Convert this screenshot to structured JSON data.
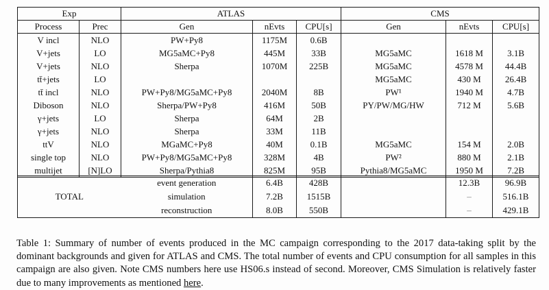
{
  "table": {
    "header_groups": [
      {
        "label": "Exp"
      },
      {
        "label": "ATLAS"
      },
      {
        "label": "CMS"
      }
    ],
    "columns": [
      "Process",
      "Prec",
      "Gen",
      "nEvts",
      "CPU[s]",
      "Gen",
      "nEvts",
      "CPU[s]"
    ],
    "rows": [
      [
        "V incl",
        "NLO",
        "PW+Py8",
        "1175M",
        "0.6B",
        "",
        "",
        ""
      ],
      [
        "V+jets",
        "LO",
        "MG5aMC+Py8",
        "445M",
        "33B",
        "MG5aMC",
        "1618 M",
        "3.1B"
      ],
      [
        "V+jets",
        "NLO",
        "Sherpa",
        "1070M",
        "225B",
        "MG5aMC",
        "4578 M",
        "44.4B"
      ],
      [
        "tt̄+jets",
        "LO",
        "",
        "",
        "",
        "MG5aMC",
        "430 M",
        "26.4B"
      ],
      [
        "tt̄ incl",
        "NLO",
        "PW+Py8/MG5aMC+Py8",
        "2040M",
        "8B",
        "PW¹",
        "1940 M",
        "4.7B"
      ],
      [
        "Diboson",
        "NLO",
        "Sherpa/PW+Py8",
        "416M",
        "50B",
        "PY/PW/MG/HW",
        "712 M",
        "5.6B"
      ],
      [
        "γ+jets",
        "LO",
        "Sherpa",
        "64M",
        "2B",
        "",
        "",
        ""
      ],
      [
        "γ+jets",
        "NLO",
        "Sherpa",
        "33M",
        "11B",
        "",
        "",
        ""
      ],
      [
        "ttV",
        "NLO",
        "MGaMC+Py8",
        "40M",
        "0.1B",
        "MG5aMC",
        "154 M",
        "2.0B"
      ],
      [
        "single top",
        "NLO",
        "PW+Py8/MG5aMC+Py8",
        "328M",
        "4B",
        "PW²",
        "880 M",
        "2.1B"
      ],
      [
        "multijet",
        "[N]LO",
        "Sherpa/Pythia8",
        "825M",
        "95B",
        "Pythia8/MG5aMC",
        "1950 M",
        "7.2B"
      ]
    ],
    "total": {
      "label": "TOTAL",
      "rows": [
        [
          "event generation",
          "6.4B",
          "428B",
          "",
          "12.3B",
          "96.9B"
        ],
        [
          "simulation",
          "7.2B",
          "1515B",
          "",
          "–",
          "516.1B"
        ],
        [
          "reconstruction",
          "8.0B",
          "550B",
          "",
          "–",
          "429.1B"
        ]
      ]
    }
  },
  "caption": {
    "text_before": "Table 1: Summary of number of events produced in the MC campaign corresponding to the 2017 data-taking split by the dominant backgrounds and given for ATLAS and CMS. The total number of events and CPU consumption for all samples in this campaign are also given. Note CMS numbers here use HS06.s instead of second. Moreover, CMS Simulation is relatively faster due to many improvements as mentioned ",
    "link_text": "here",
    "text_after": "."
  },
  "colors": {
    "border": "#1a1a1a",
    "text": "#111111",
    "dash_muted": "#777777",
    "background": "#fdfdfd"
  }
}
